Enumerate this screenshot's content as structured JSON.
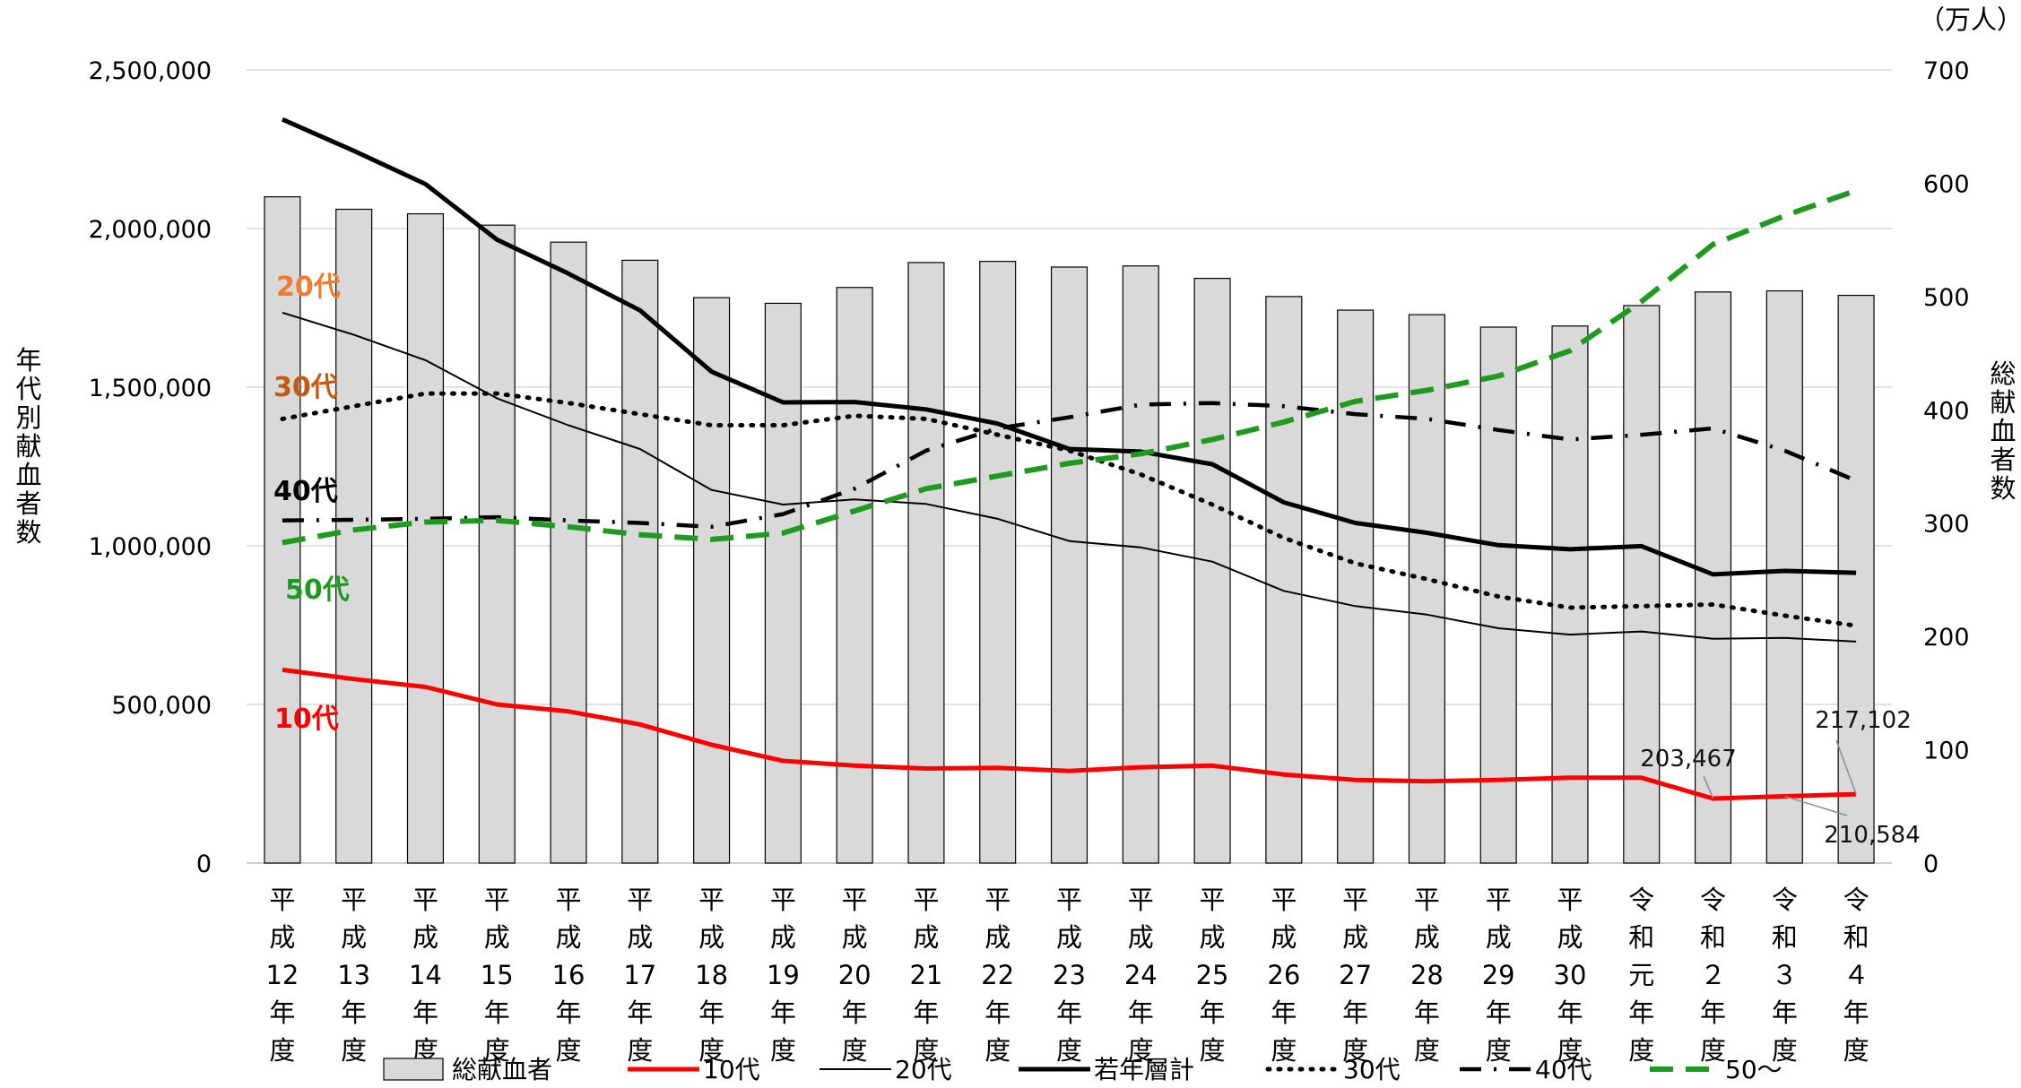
{
  "chart_data": {
    "type": "bar+line",
    "categories": [
      "平成12年度",
      "平成13年度",
      "平成14年度",
      "平成15年度",
      "平成16年度",
      "平成17年度",
      "平成18年度",
      "平成19年度",
      "平成20年度",
      "平成21年度",
      "平成22年度",
      "平成23年度",
      "平成24年度",
      "平成25年度",
      "平成26年度",
      "平成27年度",
      "平成28年度",
      "平成29年度",
      "平成30年度",
      "令和元年度",
      "令和２年度",
      "令和３年度",
      "令和４年度"
    ],
    "category_glyphs": [
      [
        "平",
        "成",
        "12",
        "年",
        "度"
      ],
      [
        "平",
        "成",
        "13",
        "年",
        "度"
      ],
      [
        "平",
        "成",
        "14",
        "年",
        "度"
      ],
      [
        "平",
        "成",
        "15",
        "年",
        "度"
      ],
      [
        "平",
        "成",
        "16",
        "年",
        "度"
      ],
      [
        "平",
        "成",
        "17",
        "年",
        "度"
      ],
      [
        "平",
        "成",
        "18",
        "年",
        "度"
      ],
      [
        "平",
        "成",
        "19",
        "年",
        "度"
      ],
      [
        "平",
        "成",
        "20",
        "年",
        "度"
      ],
      [
        "平",
        "成",
        "21",
        "年",
        "度"
      ],
      [
        "平",
        "成",
        "22",
        "年",
        "度"
      ],
      [
        "平",
        "成",
        "23",
        "年",
        "度"
      ],
      [
        "平",
        "成",
        "24",
        "年",
        "度"
      ],
      [
        "平",
        "成",
        "25",
        "年",
        "度"
      ],
      [
        "平",
        "成",
        "26",
        "年",
        "度"
      ],
      [
        "平",
        "成",
        "27",
        "年",
        "度"
      ],
      [
        "平",
        "成",
        "28",
        "年",
        "度"
      ],
      [
        "平",
        "成",
        "29",
        "年",
        "度"
      ],
      [
        "平",
        "成",
        "30",
        "年",
        "度"
      ],
      [
        "令",
        "和",
        "元",
        "年",
        "度"
      ],
      [
        "令",
        "和",
        "２",
        "年",
        "度"
      ],
      [
        "令",
        "和",
        "３",
        "年",
        "度"
      ],
      [
        "令",
        "和",
        "４",
        "年",
        "度"
      ]
    ],
    "y_left": {
      "label": "年代別献血者数",
      "lim": [
        0,
        2500000
      ],
      "ticks": [
        0,
        500000,
        1000000,
        1500000,
        2000000,
        2500000
      ],
      "tick_labels": [
        "0",
        "500,000",
        "1,000,000",
        "1,500,000",
        "2,000,000",
        "2,500,000"
      ]
    },
    "y_right": {
      "label": "総献血者数",
      "unit": "（万人）",
      "lim": [
        0,
        700
      ],
      "ticks": [
        0,
        100,
        200,
        300,
        400,
        500,
        600,
        700
      ],
      "tick_labels": [
        "0",
        "100",
        "200",
        "300",
        "400",
        "500",
        "600",
        "700"
      ]
    },
    "grid": true,
    "legend_position": "bottom",
    "bars": {
      "name": "総献血者",
      "axis": "right",
      "color": "#d9d9d9",
      "values": [
        588,
        577,
        573,
        563,
        548,
        532,
        499,
        494,
        508,
        530,
        531,
        526,
        527,
        516,
        500,
        488,
        484,
        473,
        474,
        492,
        504,
        505,
        501
      ]
    },
    "series": [
      {
        "name": "10代",
        "axis": "left",
        "color": "#ff0000",
        "style": "thick",
        "values": [
          609000,
          580000,
          555000,
          500000,
          478000,
          437000,
          373000,
          322000,
          307000,
          298000,
          300000,
          290000,
          302000,
          307000,
          279000,
          262000,
          258000,
          262000,
          269000,
          269000,
          203467,
          210584,
          217102
        ]
      },
      {
        "name": "20代",
        "axis": "left",
        "color": "#000000",
        "style": "thin",
        "values": [
          1735000,
          1665000,
          1585000,
          1465000,
          1380000,
          1305000,
          1176000,
          1130000,
          1146000,
          1132000,
          1085000,
          1015000,
          995000,
          950000,
          858000,
          810000,
          783000,
          740000,
          720000,
          730000,
          707000,
          710000,
          698000
        ]
      },
      {
        "name": "若年層計",
        "axis": "left",
        "color": "#000000",
        "style": "thick",
        "values": [
          2344000,
          2245000,
          2140000,
          1965000,
          1858000,
          1742000,
          1549000,
          1452000,
          1453000,
          1430000,
          1385000,
          1305000,
          1297000,
          1257000,
          1137000,
          1072000,
          1041000,
          1002000,
          989000,
          999000,
          910000,
          921000,
          915000
        ]
      },
      {
        "name": "30代",
        "axis": "left",
        "color": "#000000",
        "style": "dotted",
        "values": [
          1400000,
          1440000,
          1480000,
          1480000,
          1450000,
          1415000,
          1380000,
          1380000,
          1410000,
          1400000,
          1350000,
          1300000,
          1225000,
          1130000,
          1025000,
          945000,
          895000,
          840000,
          805000,
          810000,
          815000,
          780000,
          748000
        ]
      },
      {
        "name": "40代",
        "axis": "left",
        "color": "#000000",
        "style": "dashdot",
        "values": [
          1080000,
          1082000,
          1085000,
          1090000,
          1080000,
          1072000,
          1060000,
          1100000,
          1180000,
          1300000,
          1370000,
          1405000,
          1445000,
          1450000,
          1440000,
          1415000,
          1400000,
          1365000,
          1335000,
          1350000,
          1370000,
          1300000,
          1205000
        ]
      },
      {
        "name": "50～",
        "axis": "left",
        "color": "#1e9b1e",
        "style": "dashed",
        "values": [
          1010000,
          1050000,
          1075000,
          1080000,
          1060000,
          1035000,
          1020000,
          1040000,
          1110000,
          1180000,
          1220000,
          1260000,
          1290000,
          1335000,
          1390000,
          1455000,
          1490000,
          1535000,
          1615000,
          1770000,
          1950000,
          2040000,
          2120000
        ]
      }
    ],
    "annotations": [
      {
        "text": "20代",
        "color": "#ed7d31"
      },
      {
        "text": "30代",
        "color": "#c55a11"
      },
      {
        "text": "40代",
        "color": "#000000"
      },
      {
        "text": "50代",
        "color": "#1e9b1e"
      },
      {
        "text": "10代",
        "color": "#ff0000"
      }
    ],
    "data_labels": [
      "203,467",
      "210,584",
      "217,102"
    ],
    "legend": [
      "総献血者",
      "10代",
      "20代",
      "若年層計",
      "30代",
      "40代",
      "50～"
    ]
  }
}
